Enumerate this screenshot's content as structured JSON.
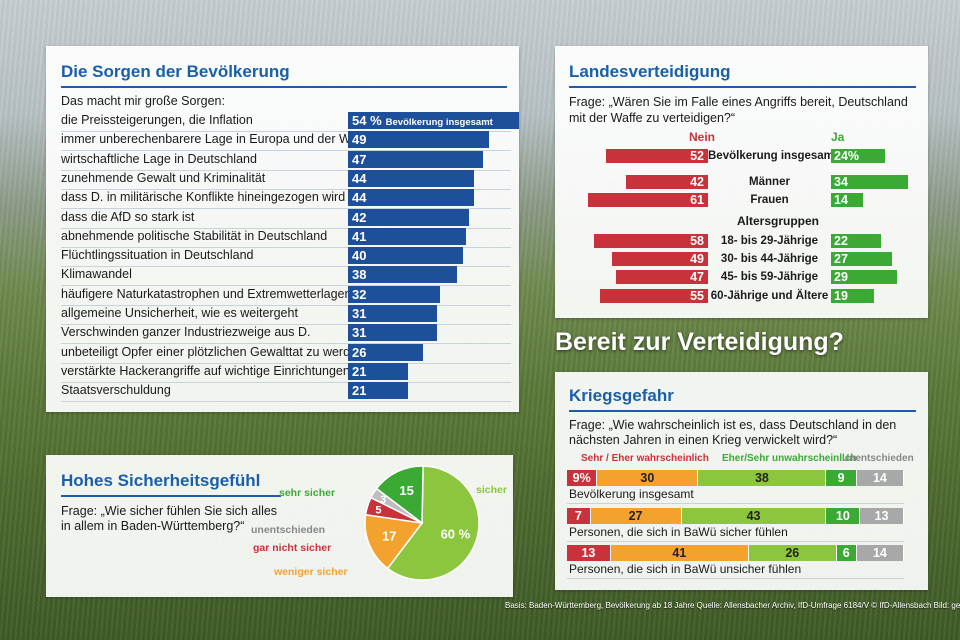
{
  "colors": {
    "blue": "#1e4f9b",
    "red": "#c8323a",
    "green": "#3aaa35",
    "orange": "#f4a22e",
    "lightgreen": "#8cc63e",
    "gray": "#a8a8a8"
  },
  "main_title": "Bereit zur Verteidigung?",
  "footer": "Basis: Baden-Württemberg, Bevölkerung ab 18 Jahre Quelle: Allensbacher Archiv, IfD-Umfrage 6184/V © IfD-Allensbach Bild: getty",
  "sorgen": {
    "title": "Die Sorgen der Bevölkerung",
    "subtitle": "Das macht mir große Sorgen:",
    "first_suffix": "Bevölkerung insgesamt"
  },
  "sicherheit": {
    "title": "Hohes Sicherheitsgefühl",
    "question": "Frage: „Wie sicher fühlen Sie sich alles in allem in Baden-Württemberg?“"
  },
  "landes": {
    "title": "Landesverteidigung",
    "question": "Frage: „Wären Sie im Falle eines Angriffs bereit, Deutschland mit der Waffe zu verteidigen?“",
    "nein": "Nein",
    "ja": "Ja",
    "group_label": "Altersgruppen"
  },
  "krieg": {
    "title": "Kriegsgefahr",
    "question": "Frage: „Wie wahrscheinlich ist es, dass Deutschland in den nächsten Jahren in einen Krieg verwickelt wird?“",
    "legend1": "Sehr / Eher wahrscheinlich",
    "legend2": "Eher/Sehr unwahrscheinlich",
    "legend3": "Unentschieden"
  },
  "chart_data": [
    {
      "type": "bar",
      "title": "Die Sorgen der Bevölkerung",
      "unit": "%",
      "categories": [
        "die Preissteigerungen, die Inflation",
        "immer unberechenbarere Lage in Europa und der Welt",
        "wirtschaftliche Lage in Deutschland",
        "zunehmende Gewalt und Kriminalität",
        "dass D. in militärische Konflikte hineingezogen wird",
        "dass die AfD so stark ist",
        "abnehmende politische Stabilität in Deutschland",
        "Flüchtlingssituation in Deutschland",
        "Klimawandel",
        "häufigere Naturkatastrophen und Extremwetterlagen",
        "allgemeine Unsicherheit, wie es weitergeht",
        "Verschwinden ganzer Industriezweige aus D.",
        "unbeteiligt Opfer einer plötzlichen Gewalttat zu werden",
        "verstärkte Hackerangriffe auf wichtige Einrichtungen",
        "Staatsverschuldung"
      ],
      "values": [
        54,
        49,
        47,
        44,
        44,
        42,
        41,
        40,
        38,
        32,
        31,
        31,
        26,
        21,
        21
      ],
      "labels": [
        "54 %",
        "49",
        "47",
        "44",
        "44",
        "42",
        "41",
        "40",
        "38",
        "32",
        "31",
        "31",
        "26",
        "21",
        "21"
      ]
    },
    {
      "type": "pie",
      "title": "Hohes Sicherheitsgefühl",
      "slices": [
        {
          "name": "sicher",
          "value": 60,
          "label": "60 %",
          "color": "#8cc63e"
        },
        {
          "name": "weniger sicher",
          "value": 17,
          "label": "17",
          "color": "#f4a22e"
        },
        {
          "name": "gar nicht sicher",
          "value": 5,
          "label": "5",
          "color": "#c8323a"
        },
        {
          "name": "unentschieden",
          "value": 3,
          "label": "3",
          "color": "#bdbdbd"
        },
        {
          "name": "sehr sicher",
          "value": 15,
          "label": "15",
          "color": "#3aaa35"
        }
      ]
    },
    {
      "type": "bar",
      "title": "Landesverteidigung",
      "categories": [
        "Bevölkerung insgesamt",
        "Männer",
        "Frauen",
        "18- bis 29-Jährige",
        "30- bis 44-Jährige",
        "45- bis 59-Jährige",
        "60-Jährige und Ältere"
      ],
      "series": [
        {
          "name": "Nein",
          "values": [
            52,
            42,
            61,
            58,
            49,
            47,
            55
          ]
        },
        {
          "name": "Ja",
          "values": [
            24,
            34,
            14,
            22,
            27,
            29,
            19
          ]
        }
      ],
      "ja_labels": [
        "24%",
        "34",
        "14",
        "22",
        "27",
        "29",
        "19"
      ]
    },
    {
      "type": "bar",
      "title": "Kriegsgefahr",
      "stacked": true,
      "categories": [
        "Bevölkerung insgesamt",
        "Personen, die sich in BaWü sicher fühlen",
        "Personen, die sich in BaWü unsicher fühlen"
      ],
      "series": [
        {
          "name": "Sehr wahrscheinlich",
          "values": [
            9,
            7,
            13
          ],
          "labels": [
            "9%",
            "7",
            "13"
          ]
        },
        {
          "name": "Eher wahrscheinlich",
          "values": [
            30,
            27,
            41
          ],
          "labels": [
            "30",
            "27",
            "41"
          ]
        },
        {
          "name": "Eher unwahrscheinlich",
          "values": [
            38,
            43,
            26
          ],
          "labels": [
            "38",
            "43",
            "26"
          ]
        },
        {
          "name": "Sehr unwahrscheinlich",
          "values": [
            9,
            10,
            6
          ],
          "labels": [
            "9",
            "10",
            "6"
          ]
        },
        {
          "name": "Unentschieden",
          "values": [
            14,
            13,
            14
          ],
          "labels": [
            "14",
            "13",
            "14"
          ]
        }
      ]
    }
  ]
}
